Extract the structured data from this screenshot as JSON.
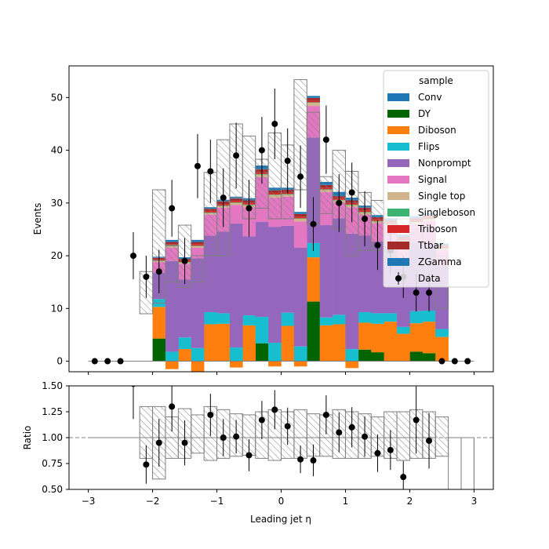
{
  "chart_data": [
    {
      "type": "bar",
      "subtype": "stacked-histogram",
      "xlabel": "",
      "ylabel": "Events",
      "xlim": [
        -3.3,
        3.3
      ],
      "ylim": [
        -2,
        56
      ],
      "yticks": [
        0,
        10,
        20,
        30,
        40,
        50
      ],
      "bin_edges": [
        -3,
        -2.8,
        -2.6,
        -2.4,
        -2.2,
        -2,
        -1.8,
        -1.6,
        -1.4,
        -1.2,
        -1,
        -0.8,
        -0.6,
        -0.4,
        -0.2,
        0,
        0.2,
        0.4,
        0.6,
        0.8,
        1,
        1.2,
        1.4,
        1.6,
        1.8,
        2,
        2.2,
        2.4,
        2.6,
        2.8,
        3
      ],
      "legend": {
        "title": "sample",
        "position": "top-right",
        "entries": [
          "Conv",
          "DY",
          "Diboson",
          "Flips",
          "Nonprompt",
          "Signal",
          "Single top",
          "Singleboson",
          "Triboson",
          "Ttbar",
          "ZGamma",
          "Data"
        ]
      },
      "series": [
        {
          "name": "DY",
          "color": "#006400",
          "values": [
            0,
            0,
            0,
            0,
            0,
            4.3,
            0,
            0,
            0,
            0,
            0,
            0,
            0,
            3.4,
            0,
            0,
            0,
            11.3,
            0,
            0,
            0,
            2.2,
            1.7,
            0,
            0,
            1.8,
            1.5,
            0,
            0,
            0
          ]
        },
        {
          "name": "Diboson",
          "color": "#ff7f0e",
          "values": [
            0,
            0,
            0,
            0,
            0,
            6.0,
            -1.5,
            2.3,
            -2.2,
            7.0,
            7.1,
            -1.2,
            6.8,
            0,
            -1.0,
            6.7,
            -1.0,
            8.4,
            6.8,
            7.0,
            -1.3,
            5.1,
            5.4,
            7.5,
            5.2,
            5.4,
            6.0,
            4.6,
            0,
            0
          ]
        },
        {
          "name": "Flips",
          "color": "#17becf",
          "values": [
            0,
            0,
            0,
            0,
            0,
            1.5,
            1.8,
            2.2,
            2.5,
            2.3,
            2.0,
            2.6,
            1.9,
            5.0,
            3.5,
            2.5,
            2.8,
            2.7,
            1.5,
            1.8,
            2.3,
            2.0,
            2.0,
            1.6,
            1.3,
            2.3,
            2.1,
            1.5,
            0,
            0
          ]
        },
        {
          "name": "Nonprompt",
          "color": "#9467bd",
          "values": [
            0,
            0,
            0,
            0,
            0,
            5.0,
            17.2,
            11.0,
            17.0,
            14.5,
            15.5,
            23.5,
            15.0,
            18.0,
            22.0,
            16.5,
            18.7,
            20.0,
            17.5,
            18.3,
            21.9,
            14.5,
            13.6,
            12.7,
            12.5,
            13.0,
            12.5,
            12.0,
            0,
            0
          ]
        },
        {
          "name": "Signal",
          "color": "#e377c2",
          "values": [
            0,
            0,
            0,
            0,
            0,
            2.0,
            2.5,
            3.0,
            2.0,
            4.0,
            4.5,
            3.5,
            5.5,
            8.5,
            5.5,
            5.5,
            5.0,
            6.0,
            6.3,
            3.0,
            5.0,
            4.0,
            3.5,
            3.8,
            3.5,
            3.5,
            4.5,
            3.0,
            0,
            0
          ]
        },
        {
          "name": "Single top",
          "color": "#d2b48c",
          "values": [
            0,
            0,
            0,
            0,
            0,
            0.2,
            0.3,
            0.2,
            0.3,
            0.3,
            0.3,
            0.4,
            0.4,
            0.5,
            0.5,
            0.4,
            0.5,
            0.6,
            0.4,
            0.4,
            0.4,
            0.4,
            0.3,
            0.3,
            0.3,
            0.3,
            0.3,
            0.2,
            0,
            0
          ]
        },
        {
          "name": "Singleboson",
          "color": "#3cb371",
          "values": [
            0,
            0,
            0,
            0,
            0,
            0.1,
            0.1,
            0.1,
            0.1,
            0.1,
            0.1,
            0.1,
            0.1,
            0.1,
            0.1,
            0.1,
            0.1,
            0.1,
            0.1,
            0.1,
            0.1,
            0.1,
            0.1,
            0.1,
            0.1,
            0.1,
            0.1,
            0.1,
            0,
            0
          ]
        },
        {
          "name": "Triboson",
          "color": "#d62728",
          "values": [
            0,
            0,
            0,
            0,
            0,
            0.2,
            0.3,
            0.3,
            0.3,
            0.3,
            0.3,
            0.3,
            0.3,
            0.3,
            0.3,
            0.3,
            0.3,
            0.3,
            0.3,
            0.3,
            0.3,
            0.3,
            0.3,
            0.3,
            0.3,
            0.3,
            0.3,
            0.3,
            0,
            0
          ]
        },
        {
          "name": "Ttbar",
          "color": "#a52a2a",
          "values": [
            0,
            0,
            0,
            0,
            0,
            0.3,
            0.4,
            0.3,
            0.4,
            0.4,
            0.5,
            0.4,
            0.5,
            0.6,
            0.5,
            0.5,
            0.5,
            0.5,
            0.5,
            0.4,
            0.5,
            0.5,
            0.4,
            0.4,
            0.4,
            0.4,
            0.4,
            0.3,
            0,
            0
          ]
        },
        {
          "name": "ZGamma",
          "color": "#1f77b4",
          "values": [
            0,
            0,
            0,
            0,
            0,
            0.1,
            0.1,
            0.1,
            0.1,
            0.1,
            0.1,
            0.1,
            0.1,
            0.1,
            0.1,
            0.1,
            0.1,
            0.1,
            0.1,
            0.1,
            0.1,
            0.1,
            0.1,
            0.1,
            0.1,
            0.1,
            0.1,
            0.1,
            0,
            0
          ]
        },
        {
          "name": "Conv",
          "color": "#1f77b4",
          "values": [
            0,
            0,
            0,
            0,
            0,
            0.1,
            0.3,
            0.2,
            0.3,
            0.2,
            0.2,
            0.3,
            0.3,
            0.6,
            0.4,
            0.3,
            0.3,
            0.3,
            0.5,
            0.7,
            0.4,
            0.3,
            0.3,
            0.3,
            0.3,
            0.3,
            0.3,
            0.2,
            0,
            0
          ]
        }
      ],
      "uncertainty_band": {
        "up": [
          0,
          0,
          0,
          0,
          17.0,
          32.5,
          22.0,
          25.8,
          20.0,
          35.8,
          42.0,
          45.0,
          42.7,
          38.3,
          43.3,
          41.0,
          53.4,
          47.2,
          35.0,
          40.0,
          36.0,
          32.0,
          30.5,
          28.0,
          27.0,
          25.0,
          25.0,
          20.0,
          0,
          0
        ],
        "down": [
          0,
          0,
          0,
          0,
          9.0,
          11.0,
          15.0,
          14.0,
          15.0,
          20.0,
          20.0,
          31.0,
          27.0,
          29.0,
          27.0,
          27.0,
          32.5,
          26.0,
          28.0,
          25.0,
          20.0,
          21.0,
          21.0,
          20.0,
          18.0,
          17.0,
          17.0,
          10.0,
          0,
          0
        ]
      },
      "data": {
        "name": "Data",
        "x": [
          -2.9,
          -2.7,
          -2.5,
          -2.3,
          -2.1,
          -1.9,
          -1.7,
          -1.5,
          -1.3,
          -1.1,
          -0.9,
          -0.7,
          -0.5,
          -0.3,
          -0.1,
          0.1,
          0.3,
          0.5,
          0.7,
          0.9,
          1.1,
          1.3,
          1.5,
          1.7,
          1.9,
          2.1,
          2.3,
          2.5,
          2.7,
          2.9
        ],
        "y": [
          0,
          0,
          0,
          20,
          16,
          17,
          29,
          19,
          37,
          36,
          31,
          39,
          29,
          40,
          45,
          38,
          35,
          26,
          42,
          30,
          32,
          27,
          22,
          21,
          16,
          13,
          13,
          0,
          0,
          0
        ]
      }
    },
    {
      "type": "scatter",
      "subtype": "ratio",
      "xlabel": "Leading jet  η",
      "ylabel": "Ratio",
      "xlim": [
        -3.3,
        3.3
      ],
      "ylim": [
        0.5,
        1.5
      ],
      "xticks": [
        -3,
        -2,
        -1,
        0,
        1,
        2,
        3
      ],
      "yticks": [
        "0.50",
        "0.75",
        "1.00",
        "1.25",
        "1.50"
      ],
      "reference_line": 1.0,
      "band_up": [
        1,
        1,
        1,
        1,
        1.3,
        1.3,
        1.2,
        1.28,
        1.22,
        1.3,
        1.27,
        1.23,
        1.22,
        1.25,
        1.27,
        1.25,
        1.27,
        1.23,
        1.22,
        1.27,
        1.25,
        1.23,
        1.2,
        1.25,
        1.25,
        1.27,
        1.25,
        1.2,
        1,
        1
      ],
      "band_down": [
        1,
        1,
        1,
        1,
        0.8,
        0.6,
        0.8,
        0.8,
        0.85,
        0.78,
        0.8,
        0.82,
        0.83,
        0.8,
        0.78,
        0.8,
        0.8,
        0.82,
        0.82,
        0.8,
        0.8,
        0.8,
        0.82,
        0.8,
        0.78,
        0.8,
        0.8,
        0.82,
        0.5,
        0.5
      ],
      "points": {
        "x": [
          -2.3,
          -2.1,
          -1.9,
          -1.7,
          -1.5,
          -1.1,
          -0.9,
          -0.7,
          -0.5,
          -0.3,
          -0.1,
          0.1,
          0.3,
          0.5,
          0.7,
          0.9,
          1.1,
          1.3,
          1.5,
          1.7,
          1.9,
          2.1,
          2.3
        ],
        "y": [
          1.52,
          0.74,
          0.95,
          1.3,
          0.95,
          1.22,
          1.0,
          1.01,
          0.83,
          1.17,
          1.27,
          1.11,
          0.79,
          0.78,
          1.22,
          1.05,
          1.1,
          1.01,
          0.85,
          0.88,
          0.62,
          1.17,
          0.97
        ]
      }
    }
  ]
}
